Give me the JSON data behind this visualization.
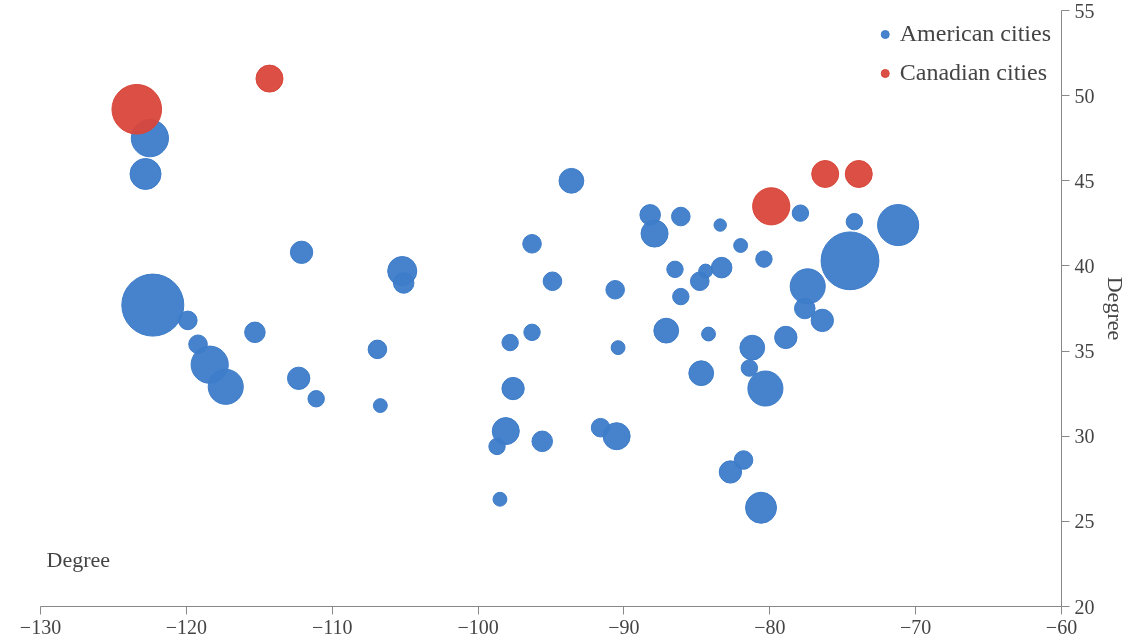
{
  "chart_data": {
    "type": "bubble",
    "xlabel": "Degree",
    "ylabel": "Degree",
    "xlim": [
      -130,
      -60
    ],
    "xticks": [
      -130,
      -120,
      -110,
      -100,
      -90,
      -80,
      -70,
      -60
    ],
    "ylim": [
      20,
      55
    ],
    "yticks": [
      20,
      25,
      30,
      35,
      40,
      45,
      50,
      55
    ],
    "grid": false,
    "legend": "top right",
    "marker": "circle",
    "series": [
      {
        "name": "American cities",
        "color": "#3d7cc9",
        "x": [
          -122.5,
          -122.8,
          -122.3,
          -119.9,
          -119.2,
          -118.4,
          -117.3,
          -115.3,
          -112.1,
          -112.3,
          -111.1,
          -106.9,
          -106.7,
          -105.2,
          -105.1,
          -98.5,
          -98.7,
          -98.1,
          -97.8,
          -97.6,
          -96.3,
          -96.3,
          -95.6,
          -94.9,
          -93.6,
          -91.6,
          -90.5,
          -90.6,
          -90.4,
          -88.2,
          -87.9,
          -87.1,
          -86.1,
          -86.5,
          -86.1,
          -84.8,
          -84.4,
          -84.2,
          -84.7,
          -83.4,
          -83.3,
          -82.7,
          -81.8,
          -82.0,
          -81.4,
          -81.2,
          -80.4,
          -80.3,
          -80.6,
          -78.9,
          -77.9,
          -77.6,
          -77.4,
          -76.4,
          -74.2,
          -74.5,
          -71.2
        ],
        "values": [
          47.5,
          45.4,
          37.7,
          36.8,
          35.4,
          34.2,
          32.9,
          36.1,
          40.8,
          33.4,
          32.2,
          35.1,
          31.8,
          39.7,
          39.0,
          26.3,
          29.4,
          30.3,
          35.5,
          32.8,
          41.3,
          36.1,
          29.7,
          39.1,
          45.0,
          30.5,
          30.0,
          38.6,
          35.2,
          43.0,
          41.9,
          36.2,
          42.9,
          39.8,
          38.2,
          39.1,
          39.7,
          36.0,
          33.7,
          42.4,
          39.9,
          27.9,
          28.6,
          41.2,
          34.0,
          35.2,
          40.4,
          32.8,
          25.8,
          35.8,
          43.1,
          37.5,
          38.8,
          36.8,
          42.6,
          40.3,
          42.4
        ],
        "sizes": [
          0.36,
          0.25,
          1,
          0.09,
          0.09,
          0.36,
          0.32,
          0.11,
          0.13,
          0.13,
          0.07,
          0.09,
          0.05,
          0.22,
          0.11,
          0.05,
          0.07,
          0.19,
          0.07,
          0.13,
          0.09,
          0.07,
          0.11,
          0.09,
          0.16,
          0.09,
          0.19,
          0.09,
          0.05,
          0.11,
          0.19,
          0.16,
          0.09,
          0.07,
          0.07,
          0.09,
          0.05,
          0.05,
          0.16,
          0.04,
          0.11,
          0.13,
          0.09,
          0.05,
          0.07,
          0.16,
          0.07,
          0.32,
          0.25,
          0.13,
          0.07,
          0.11,
          0.32,
          0.13,
          0.07,
          0.87,
          0.44
        ]
      },
      {
        "name": "Canadian cities",
        "color": "#d9463a",
        "x": [
          -123.4,
          -114.3,
          -76.2,
          -73.9,
          -79.9
        ],
        "values": [
          49.2,
          51.0,
          45.4,
          45.4,
          43.5
        ],
        "sizes": [
          0.64,
          0.19,
          0.19,
          0.19,
          0.36
        ]
      }
    ]
  }
}
